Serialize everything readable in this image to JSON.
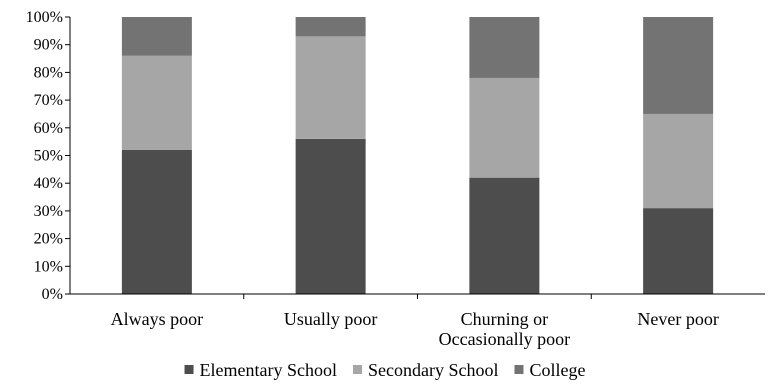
{
  "chart_data": {
    "type": "bar",
    "stacked": true,
    "percent_stacked": true,
    "categories": [
      [
        "Always poor"
      ],
      [
        "Usually poor"
      ],
      [
        "Churning or",
        "Occasionally poor"
      ],
      [
        "Never poor"
      ]
    ],
    "series": [
      {
        "name": "Elementary School",
        "values": [
          52,
          56,
          42,
          31
        ],
        "color": "#4d4d4d"
      },
      {
        "name": "Secondary School",
        "values": [
          34,
          37,
          36,
          34
        ],
        "color": "#a6a6a6"
      },
      {
        "name": "College",
        "values": [
          14,
          7,
          22,
          35
        ],
        "color": "#737373"
      }
    ],
    "ylim": [
      0,
      100
    ],
    "yticks": [
      0,
      10,
      20,
      30,
      40,
      50,
      60,
      70,
      80,
      90,
      100
    ],
    "ytick_suffix": "%",
    "grid": false,
    "legend_position": "bottom"
  }
}
